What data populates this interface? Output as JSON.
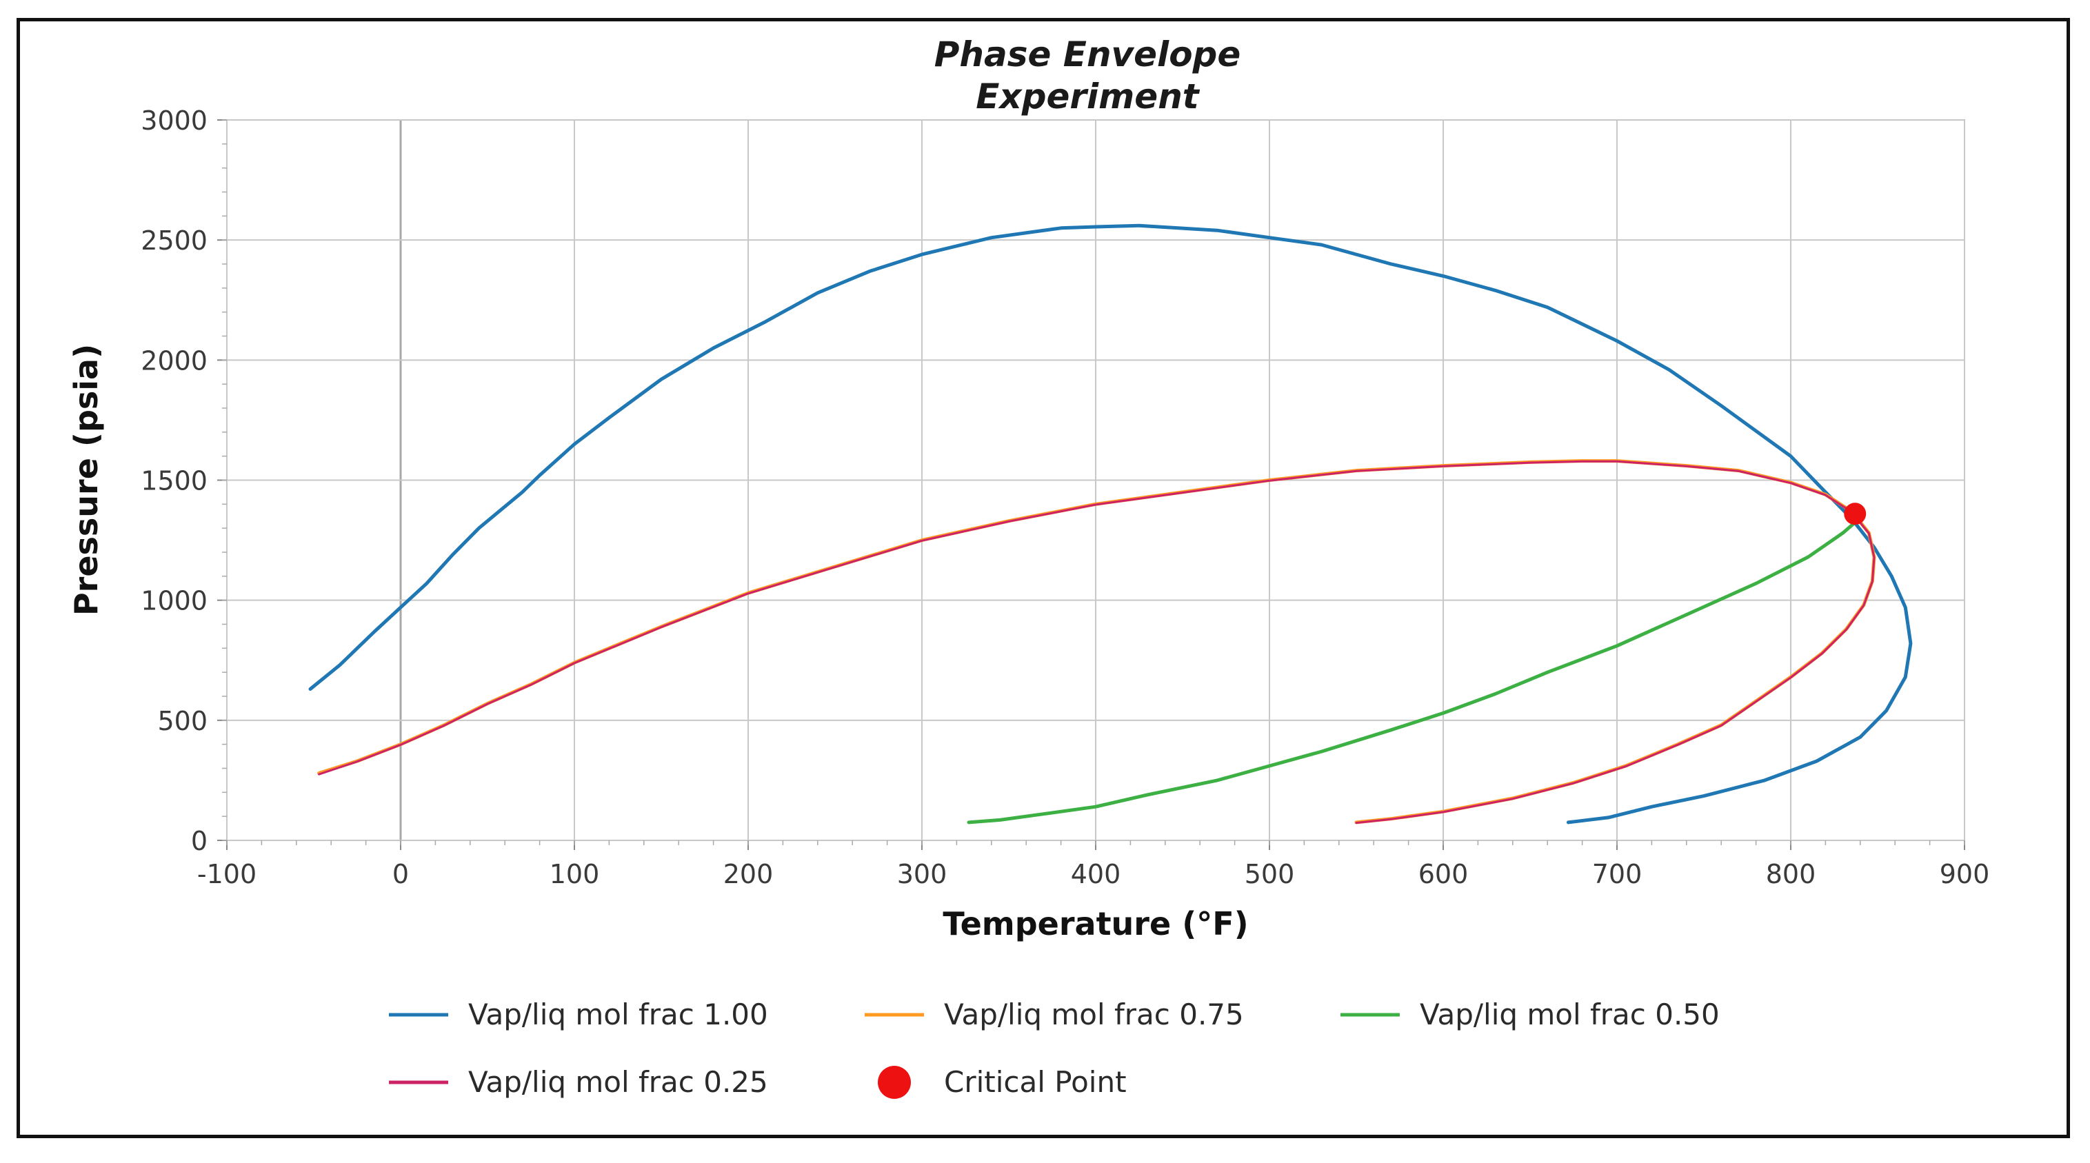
{
  "chart_data": {
    "type": "line",
    "title": [
      "Phase Envelope",
      "Experiment"
    ],
    "xlabel": "Temperature (°F)",
    "ylabel": "Pressure (psia)",
    "xlim": [
      -100,
      900
    ],
    "ylim": [
      0,
      3000
    ],
    "xticks": [
      -100,
      0,
      100,
      200,
      300,
      400,
      500,
      600,
      700,
      800,
      900
    ],
    "yticks": [
      0,
      500,
      1000,
      1500,
      2000,
      2500,
      3000
    ],
    "grid": true,
    "legend_position": "bottom",
    "series": [
      {
        "name": "Vap/liq mol frac 1.00",
        "color": "#1f77b4",
        "points": [
          [
            -52,
            630
          ],
          [
            -35,
            730
          ],
          [
            -15,
            870
          ],
          [
            0,
            970
          ],
          [
            15,
            1070
          ],
          [
            30,
            1190
          ],
          [
            45,
            1300
          ],
          [
            60,
            1390
          ],
          [
            70,
            1450
          ],
          [
            80,
            1520
          ],
          [
            100,
            1650
          ],
          [
            120,
            1760
          ],
          [
            150,
            1920
          ],
          [
            180,
            2050
          ],
          [
            210,
            2160
          ],
          [
            240,
            2280
          ],
          [
            270,
            2370
          ],
          [
            300,
            2440
          ],
          [
            340,
            2510
          ],
          [
            380,
            2550
          ],
          [
            400,
            2555
          ],
          [
            425,
            2560
          ],
          [
            470,
            2540
          ],
          [
            500,
            2510
          ],
          [
            530,
            2480
          ],
          [
            570,
            2400
          ],
          [
            600,
            2350
          ],
          [
            630,
            2290
          ],
          [
            660,
            2220
          ],
          [
            700,
            2080
          ],
          [
            730,
            1960
          ],
          [
            760,
            1810
          ],
          [
            800,
            1600
          ],
          [
            820,
            1450
          ],
          [
            835,
            1340
          ],
          [
            848,
            1220
          ],
          [
            858,
            1100
          ],
          [
            866,
            970
          ],
          [
            869,
            820
          ],
          [
            866,
            680
          ],
          [
            855,
            540
          ],
          [
            840,
            430
          ],
          [
            815,
            330
          ],
          [
            785,
            250
          ],
          [
            750,
            185
          ],
          [
            720,
            140
          ],
          [
            695,
            95
          ],
          [
            672,
            75
          ]
        ]
      },
      {
        "name": "Vap/liq mol frac 0.75",
        "color": "#ff9922",
        "points": [
          [
            -47,
            280
          ],
          [
            -25,
            330
          ],
          [
            0,
            400
          ],
          [
            25,
            480
          ],
          [
            50,
            570
          ],
          [
            75,
            650
          ],
          [
            100,
            740
          ],
          [
            150,
            890
          ],
          [
            200,
            1030
          ],
          [
            250,
            1140
          ],
          [
            300,
            1250
          ],
          [
            350,
            1330
          ],
          [
            400,
            1400
          ],
          [
            450,
            1450
          ],
          [
            500,
            1500
          ],
          [
            550,
            1540
          ],
          [
            600,
            1560
          ],
          [
            650,
            1575
          ],
          [
            680,
            1580
          ],
          [
            700,
            1580
          ],
          [
            740,
            1560
          ],
          [
            770,
            1540
          ],
          [
            800,
            1490
          ],
          [
            820,
            1440
          ],
          [
            835,
            1370
          ],
          [
            845,
            1280
          ],
          [
            848,
            1180
          ],
          [
            847,
            1080
          ],
          [
            842,
            980
          ],
          [
            832,
            880
          ],
          [
            818,
            780
          ],
          [
            800,
            680
          ],
          [
            780,
            580
          ],
          [
            760,
            480
          ],
          [
            735,
            400
          ],
          [
            705,
            310
          ],
          [
            675,
            240
          ],
          [
            640,
            175
          ],
          [
            600,
            120
          ],
          [
            570,
            90
          ],
          [
            550,
            75
          ]
        ]
      },
      {
        "name": "Vap/liq mol frac 0.50",
        "color": "#3cb043",
        "points": [
          [
            327,
            75
          ],
          [
            345,
            85
          ],
          [
            370,
            110
          ],
          [
            400,
            140
          ],
          [
            430,
            190
          ],
          [
            470,
            250
          ],
          [
            500,
            310
          ],
          [
            530,
            370
          ],
          [
            570,
            460
          ],
          [
            600,
            530
          ],
          [
            630,
            610
          ],
          [
            660,
            700
          ],
          [
            700,
            810
          ],
          [
            740,
            940
          ],
          [
            780,
            1070
          ],
          [
            810,
            1180
          ],
          [
            830,
            1280
          ],
          [
            838,
            1330
          ]
        ]
      },
      {
        "name": "Vap/liq mol frac 0.25",
        "color": "#cc2266",
        "points": [
          [
            -47,
            275
          ],
          [
            -25,
            328
          ],
          [
            0,
            398
          ],
          [
            25,
            478
          ],
          [
            50,
            568
          ],
          [
            75,
            648
          ],
          [
            100,
            738
          ],
          [
            150,
            888
          ],
          [
            200,
            1028
          ],
          [
            250,
            1138
          ],
          [
            300,
            1248
          ],
          [
            350,
            1328
          ],
          [
            400,
            1398
          ],
          [
            450,
            1448
          ],
          [
            500,
            1498
          ],
          [
            550,
            1538
          ],
          [
            600,
            1558
          ],
          [
            650,
            1573
          ],
          [
            680,
            1578
          ],
          [
            700,
            1578
          ],
          [
            740,
            1558
          ],
          [
            770,
            1538
          ],
          [
            800,
            1488
          ],
          [
            820,
            1438
          ],
          [
            835,
            1368
          ],
          [
            845,
            1278
          ],
          [
            848,
            1178
          ],
          [
            847,
            1078
          ],
          [
            842,
            978
          ],
          [
            832,
            878
          ],
          [
            818,
            778
          ],
          [
            800,
            678
          ],
          [
            780,
            578
          ],
          [
            760,
            478
          ],
          [
            735,
            398
          ],
          [
            705,
            308
          ],
          [
            675,
            238
          ],
          [
            640,
            173
          ],
          [
            600,
            118
          ],
          [
            570,
            88
          ],
          [
            550,
            73
          ]
        ]
      }
    ],
    "critical_point": {
      "name": "Critical Point",
      "color": "#ee1111",
      "x": 837,
      "y": 1360
    }
  }
}
